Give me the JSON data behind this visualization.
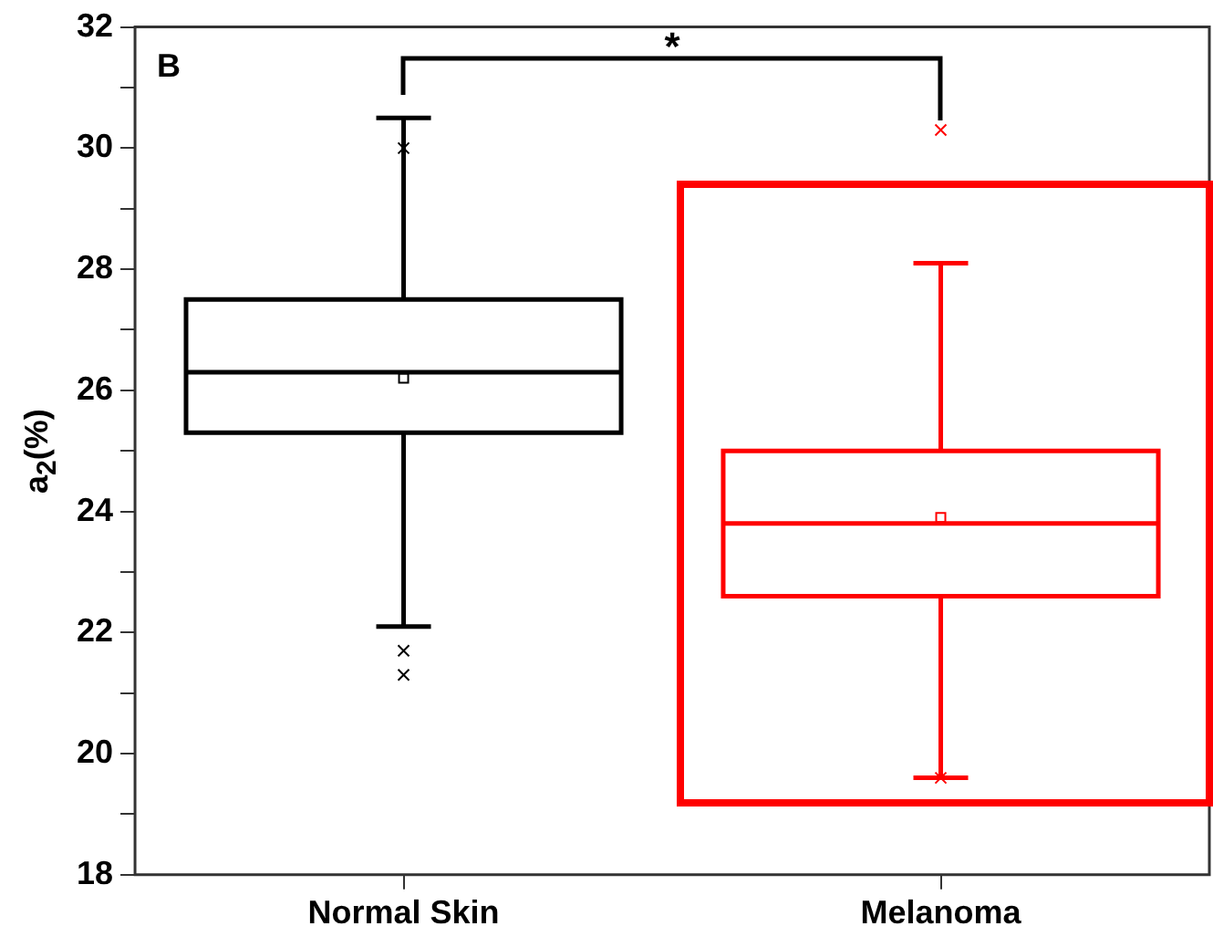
{
  "chart_data": {
    "type": "box",
    "ylabel": "a$_{2}$(%)",
    "categories": [
      "Normal Skin",
      "Melanoma"
    ],
    "colors": [
      "#000000",
      "#ff0000"
    ],
    "boxes": [
      {
        "low": 22.1,
        "q1": 25.3,
        "median": 26.3,
        "q3": 27.5,
        "high": 30.5,
        "mean": 26.2,
        "outliers": [
          30.0,
          21.7,
          21.3
        ]
      },
      {
        "low": 19.6,
        "q1": 22.6,
        "median": 23.8,
        "q3": 25.0,
        "high": 28.1,
        "mean": 23.9,
        "outliers": [
          30.3,
          19.6
        ]
      }
    ],
    "ylim": [
      18,
      32
    ],
    "yticks": [
      18,
      {
        "value": 19,
        "label": null
      },
      20,
      {
        "value": 21,
        "label": null
      },
      22,
      {
        "value": 23,
        "label": null
      },
      24,
      {
        "value": 25,
        "label": null
      },
      26,
      {
        "value": 27,
        "label": null
      },
      28,
      {
        "value": 29,
        "label": null
      },
      30,
      {
        "value": 31,
        "label": null
      },
      32
    ],
    "annotations": [
      "B",
      "*"
    ]
  }
}
